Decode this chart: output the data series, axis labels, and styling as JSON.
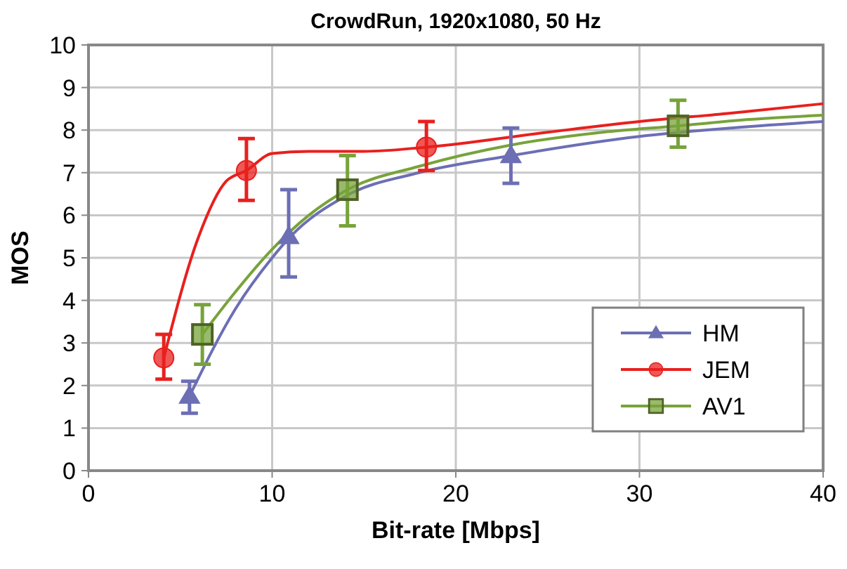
{
  "chart_data": {
    "type": "scatter",
    "title": "CrowdRun, 1920x1080, 50 Hz",
    "xlabel": "Bit-rate [Mbps]",
    "ylabel": "MOS",
    "xlim": [
      0,
      40
    ],
    "xticks": [
      0,
      10,
      20,
      30,
      40
    ],
    "ylim": [
      0,
      10
    ],
    "yticks": [
      0,
      1,
      2,
      3,
      4,
      5,
      6,
      7,
      8,
      9,
      10
    ],
    "grid": true,
    "legend": "bottom right",
    "series": [
      {
        "type": "line",
        "marker": "none",
        "color": "#6c6fb4",
        "x": [
          5.5,
          8,
          10,
          11,
          14,
          18,
          23,
          30,
          35,
          40
        ],
        "values": [
          1.75,
          3.8,
          5.0,
          5.5,
          6.45,
          7.0,
          7.4,
          7.85,
          8.05,
          8.2
        ]
      },
      {
        "type": "line",
        "marker": "none",
        "color": "#e8201e",
        "x": [
          4.1,
          6,
          7.5,
          8.6,
          10,
          12,
          15,
          18.4,
          25,
          30,
          35,
          40
        ],
        "values": [
          2.65,
          5.5,
          6.8,
          7.05,
          7.45,
          7.5,
          7.5,
          7.6,
          7.95,
          8.2,
          8.4,
          8.62
        ]
      },
      {
        "type": "line",
        "marker": "none",
        "color": "#77a33a",
        "x": [
          6.2,
          8,
          10,
          12,
          14.1,
          18,
          23,
          28,
          32.1,
          36,
          40
        ],
        "values": [
          3.2,
          4.2,
          5.2,
          6.0,
          6.6,
          7.15,
          7.65,
          7.95,
          8.1,
          8.25,
          8.35
        ]
      },
      {
        "name": "HM",
        "marker": "triangle",
        "color": "#6c6fb4",
        "x": [
          5.5,
          10.9,
          23
        ],
        "values": [
          1.75,
          5.5,
          7.4
        ],
        "errors": [
          [
            1.35,
            2.1
          ],
          [
            4.55,
            6.6
          ],
          [
            6.75,
            8.05
          ]
        ]
      },
      {
        "name": "JEM",
        "marker": "circle",
        "color": "#e8201e",
        "x": [
          4.1,
          8.6,
          18.4
        ],
        "values": [
          2.65,
          7.05,
          7.6
        ],
        "errors": [
          [
            2.15,
            3.2
          ],
          [
            6.35,
            7.8
          ],
          [
            7.05,
            8.2
          ]
        ]
      },
      {
        "name": "AV1",
        "marker": "square",
        "color": "#77a33a",
        "x": [
          6.2,
          14.1,
          32.1
        ],
        "values": [
          3.2,
          6.6,
          8.1
        ],
        "errors": [
          [
            2.5,
            3.9
          ],
          [
            5.75,
            7.4
          ],
          [
            7.6,
            8.7
          ]
        ]
      }
    ]
  }
}
